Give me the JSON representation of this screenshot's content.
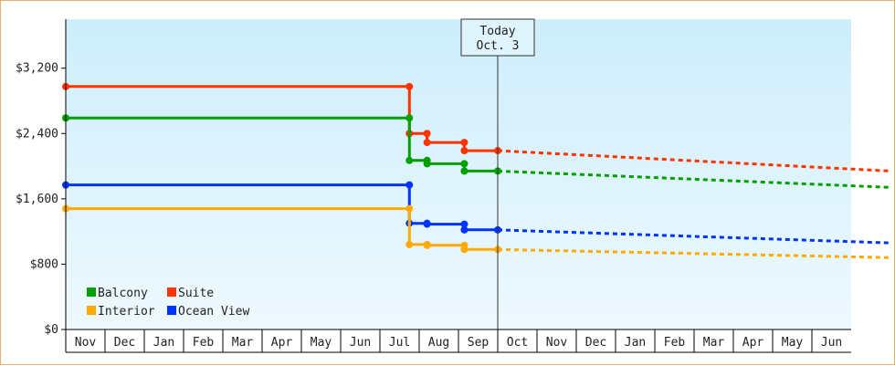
{
  "chart_data": {
    "type": "line",
    "step": true,
    "y_ticks": [
      "$0",
      "$800",
      "$1,600",
      "$2,400",
      "$3,200"
    ],
    "y_tick_values": [
      0,
      800,
      1600,
      2400,
      3200
    ],
    "ylim": [
      0,
      3800
    ],
    "x_months": [
      "Nov",
      "Dec",
      "Jan",
      "Feb",
      "Mar",
      "Apr",
      "May",
      "Jun",
      "Jul",
      "Aug",
      "Sep",
      "Oct",
      "Nov",
      "Dec",
      "Jan",
      "Feb",
      "Mar",
      "Apr",
      "May",
      "Jun"
    ],
    "today": {
      "line1": "Today",
      "line2": "Oct. 3",
      "x": 11.0
    },
    "series": [
      {
        "name": "Suite",
        "color": "#ff3300",
        "points": [
          [
            0,
            2975
          ],
          [
            8.75,
            2975
          ],
          [
            8.75,
            2400
          ],
          [
            9.2,
            2400
          ],
          [
            9.2,
            2290
          ],
          [
            10.15,
            2290
          ],
          [
            10.15,
            2190
          ],
          [
            11.0,
            2190
          ]
        ],
        "markers": [
          [
            0,
            2975
          ],
          [
            8.75,
            2975
          ],
          [
            8.75,
            2400
          ],
          [
            9.2,
            2400
          ],
          [
            9.2,
            2290
          ],
          [
            10.15,
            2290
          ],
          [
            10.15,
            2190
          ],
          [
            11.0,
            2190
          ]
        ],
        "forecast": [
          [
            11.0,
            2190
          ],
          [
            21.0,
            1940
          ]
        ]
      },
      {
        "name": "Balcony",
        "color": "#00a000",
        "points": [
          [
            0,
            2590
          ],
          [
            8.75,
            2590
          ],
          [
            8.75,
            2070
          ],
          [
            9.2,
            2070
          ],
          [
            9.2,
            2030
          ],
          [
            10.15,
            2030
          ],
          [
            10.15,
            1940
          ],
          [
            11.0,
            1940
          ]
        ],
        "markers": [
          [
            0,
            2590
          ],
          [
            8.75,
            2590
          ],
          [
            8.75,
            2070
          ],
          [
            9.2,
            2070
          ],
          [
            9.2,
            2030
          ],
          [
            10.15,
            2030
          ],
          [
            10.15,
            1940
          ],
          [
            11.0,
            1940
          ]
        ],
        "forecast": [
          [
            11.0,
            1940
          ],
          [
            21.0,
            1740
          ]
        ]
      },
      {
        "name": "Ocean View",
        "color": "#0033ff",
        "points": [
          [
            0,
            1770
          ],
          [
            8.75,
            1770
          ],
          [
            8.75,
            1300
          ],
          [
            9.2,
            1300
          ],
          [
            9.2,
            1290
          ],
          [
            10.15,
            1290
          ],
          [
            10.15,
            1220
          ],
          [
            11.0,
            1220
          ]
        ],
        "markers": [
          [
            0,
            1770
          ],
          [
            8.75,
            1770
          ],
          [
            8.75,
            1300
          ],
          [
            9.2,
            1300
          ],
          [
            9.2,
            1290
          ],
          [
            10.15,
            1290
          ],
          [
            10.15,
            1220
          ],
          [
            11.0,
            1220
          ]
        ],
        "forecast": [
          [
            11.0,
            1220
          ],
          [
            21.0,
            1060
          ]
        ]
      },
      {
        "name": "Interior",
        "color": "#ffaa00",
        "points": [
          [
            0,
            1480
          ],
          [
            8.75,
            1480
          ],
          [
            8.75,
            1040
          ],
          [
            9.2,
            1040
          ],
          [
            9.2,
            1030
          ],
          [
            10.15,
            1030
          ],
          [
            10.15,
            980
          ],
          [
            11.0,
            980
          ]
        ],
        "markers": [
          [
            0,
            1480
          ],
          [
            8.75,
            1480
          ],
          [
            8.75,
            1040
          ],
          [
            9.2,
            1040
          ],
          [
            9.2,
            1030
          ],
          [
            10.15,
            1030
          ],
          [
            10.15,
            980
          ],
          [
            11.0,
            980
          ]
        ],
        "forecast": [
          [
            11.0,
            980
          ],
          [
            21.0,
            880
          ]
        ]
      }
    ],
    "legend": [
      {
        "name": "Balcony",
        "color": "#00a000"
      },
      {
        "name": "Suite",
        "color": "#ff3300"
      },
      {
        "name": "Interior",
        "color": "#ffaa00"
      },
      {
        "name": "Ocean View",
        "color": "#0033ff"
      }
    ],
    "legend_position": "bottom-left",
    "grid": false
  }
}
